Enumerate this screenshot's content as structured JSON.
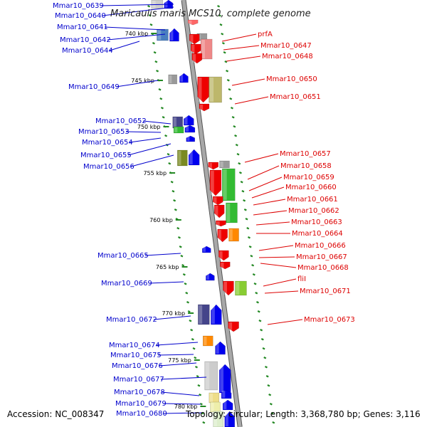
{
  "title": "Maricaulis maris MCS10, complete genome",
  "footer": {
    "accession": "Accession: NC_008347",
    "topology": "Topology: circular; Length: 3,368,780 bp; Genes: 3,116"
  },
  "colors": {
    "left_labels": "#0000cc",
    "right_labels": "#dd0000",
    "backbone": "#888888",
    "ruler": "#228822"
  },
  "kbp_labels": [
    "740 kbp",
    "745 kbp",
    "750 kbp",
    "755 kbp",
    "760 kbp",
    "765 kbp",
    "770 kbp",
    "775 kbp",
    "780 kbp"
  ],
  "left_genes": [
    "Mmar10_0639",
    "Mmar10_0640",
    "Mmar10_0641",
    "Mmar10_0642",
    "Mmar10_0644",
    "Mmar10_0649",
    "Mmar10_0652",
    "Mmar10_0653",
    "Mmar10_0654",
    "Mmar10_0655",
    "Mmar10_0656",
    "Mmar10_0665",
    "Mmar10_0669",
    "Mmar10_0672",
    "Mmar10_0674",
    "Mmar10_0675",
    "Mmar10_0676",
    "Mmar10_0677",
    "Mmar10_0678",
    "Mmar10_0679",
    "Mmar10_0680"
  ],
  "right_genes": [
    "prfA",
    "Mmar10_0647",
    "Mmar10_0648",
    "Mmar10_0650",
    "Mmar10_0651",
    "Mmar10_0657",
    "Mmar10_0658",
    "Mmar10_0659",
    "Mmar10_0660",
    "Mmar10_0661",
    "Mmar10_0662",
    "Mmar10_0663",
    "Mmar10_0664",
    "Mmar10_0666",
    "Mmar10_0667",
    "Mmar10_0668",
    "fliI",
    "Mmar10_0671",
    "Mmar10_0673"
  ]
}
